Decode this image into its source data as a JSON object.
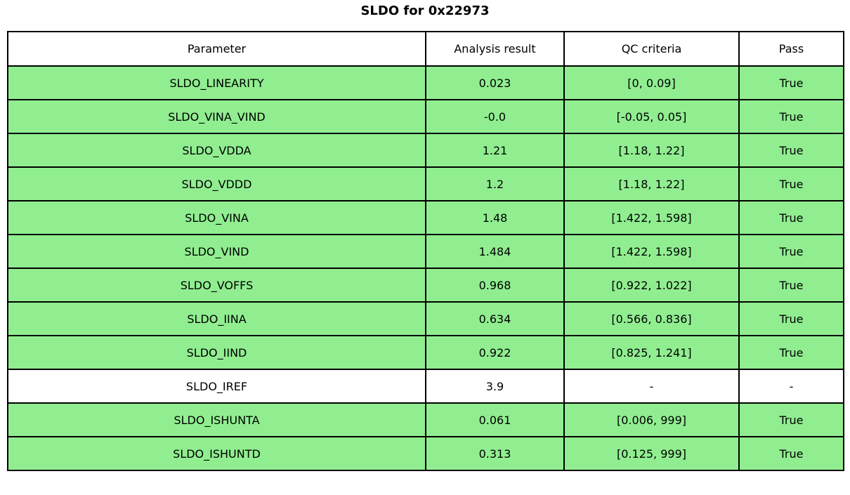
{
  "title": "SLDO for 0x22973",
  "colors": {
    "pass_row_green": "#90EE90",
    "neutral_row_white": "#FFFFFF",
    "border": "#000000",
    "text": "#000000",
    "background": "#FFFFFF"
  },
  "table": {
    "headers": [
      "Parameter",
      "Analysis result",
      "QC criteria",
      "Pass"
    ],
    "rows": [
      {
        "parameter": "SLDO_LINEARITY",
        "analysis_result": "0.023",
        "qc_criteria": "[0, 0.09]",
        "pass": "True",
        "highlight": true
      },
      {
        "parameter": "SLDO_VINA_VIND",
        "analysis_result": "-0.0",
        "qc_criteria": "[-0.05, 0.05]",
        "pass": "True",
        "highlight": true
      },
      {
        "parameter": "SLDO_VDDA",
        "analysis_result": "1.21",
        "qc_criteria": "[1.18, 1.22]",
        "pass": "True",
        "highlight": true
      },
      {
        "parameter": "SLDO_VDDD",
        "analysis_result": "1.2",
        "qc_criteria": "[1.18, 1.22]",
        "pass": "True",
        "highlight": true
      },
      {
        "parameter": "SLDO_VINA",
        "analysis_result": "1.48",
        "qc_criteria": "[1.422, 1.598]",
        "pass": "True",
        "highlight": true
      },
      {
        "parameter": "SLDO_VIND",
        "analysis_result": "1.484",
        "qc_criteria": "[1.422, 1.598]",
        "pass": "True",
        "highlight": true
      },
      {
        "parameter": "SLDO_VOFFS",
        "analysis_result": "0.968",
        "qc_criteria": "[0.922, 1.022]",
        "pass": "True",
        "highlight": true
      },
      {
        "parameter": "SLDO_IINA",
        "analysis_result": "0.634",
        "qc_criteria": "[0.566, 0.836]",
        "pass": "True",
        "highlight": true
      },
      {
        "parameter": "SLDO_IIND",
        "analysis_result": "0.922",
        "qc_criteria": "[0.825, 1.241]",
        "pass": "True",
        "highlight": true
      },
      {
        "parameter": "SLDO_IREF",
        "analysis_result": "3.9",
        "qc_criteria": "-",
        "pass": "-",
        "highlight": false
      },
      {
        "parameter": "SLDO_ISHUNTA",
        "analysis_result": "0.061",
        "qc_criteria": "[0.006, 999]",
        "pass": "True",
        "highlight": true
      },
      {
        "parameter": "SLDO_ISHUNTD",
        "analysis_result": "0.313",
        "qc_criteria": "[0.125, 999]",
        "pass": "True",
        "highlight": true
      }
    ]
  },
  "chart_data": {
    "type": "table",
    "title": "SLDO for 0x22973",
    "columns": [
      "Parameter",
      "Analysis result",
      "QC criteria",
      "Pass"
    ],
    "rows": [
      [
        "SLDO_LINEARITY",
        "0.023",
        "[0, 0.09]",
        "True"
      ],
      [
        "SLDO_VINA_VIND",
        "-0.0",
        "[-0.05, 0.05]",
        "True"
      ],
      [
        "SLDO_VDDA",
        "1.21",
        "[1.18, 1.22]",
        "True"
      ],
      [
        "SLDO_VDDD",
        "1.2",
        "[1.18, 1.22]",
        "True"
      ],
      [
        "SLDO_VINA",
        "1.48",
        "[1.422, 1.598]",
        "True"
      ],
      [
        "SLDO_VIND",
        "1.484",
        "[1.422, 1.598]",
        "True"
      ],
      [
        "SLDO_VOFFS",
        "0.968",
        "[0.922, 1.022]",
        "True"
      ],
      [
        "SLDO_IINA",
        "0.634",
        "[0.566, 0.836]",
        "True"
      ],
      [
        "SLDO_IIND",
        "0.922",
        "[0.825, 1.241]",
        "True"
      ],
      [
        "SLDO_IREF",
        "3.9",
        "-",
        "-"
      ],
      [
        "SLDO_ISHUNTA",
        "0.061",
        "[0.006, 999]",
        "True"
      ],
      [
        "SLDO_ISHUNTD",
        "0.313",
        "[0.125, 999]",
        "True"
      ]
    ],
    "row_colors": [
      "#90EE90",
      "#90EE90",
      "#90EE90",
      "#90EE90",
      "#90EE90",
      "#90EE90",
      "#90EE90",
      "#90EE90",
      "#90EE90",
      "#FFFFFF",
      "#90EE90",
      "#90EE90"
    ],
    "header_color": "#FFFFFF",
    "layout": {
      "grid": true,
      "border_color": "#000000",
      "title_position": "top-center"
    }
  }
}
